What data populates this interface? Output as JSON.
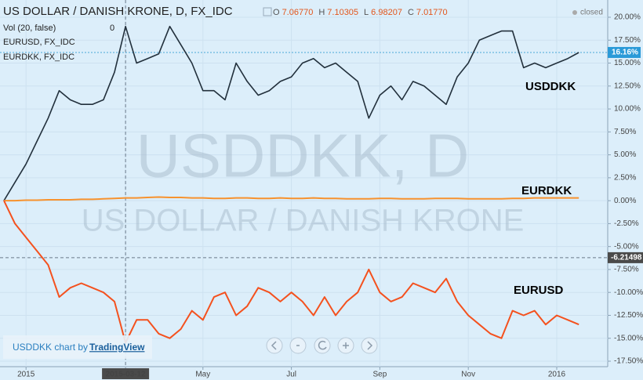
{
  "header": {
    "symbol": "US DOLLAR / DANISH KRONE, D, FX_IDC",
    "ohlc": [
      {
        "key": "O",
        "value": "7.06770"
      },
      {
        "key": "H",
        "value": "7.10305"
      },
      {
        "key": "L",
        "value": "6.98207"
      },
      {
        "key": "C",
        "value": "7.01770"
      }
    ],
    "status": "closed",
    "indicators": [
      {
        "name": "Vol (20, false)",
        "value": "0"
      },
      {
        "name": "EURUSD, FX_IDC"
      },
      {
        "name": "EURDKK, FX_IDC"
      }
    ]
  },
  "watermark": {
    "title": "USDDKK, D",
    "subtitle": "US DOLLAR / DANISH KRONE"
  },
  "credit": {
    "text": "USDDKK chart by",
    "link": "TradingView"
  },
  "chart_data": {
    "type": "line",
    "categories": [
      null,
      null,
      "2015",
      null,
      null,
      null,
      null,
      null,
      null,
      null,
      null,
      "2015-03-12",
      null,
      null,
      null,
      null,
      null,
      null,
      "May",
      null,
      null,
      null,
      null,
      null,
      null,
      null,
      "Jul",
      null,
      null,
      null,
      null,
      null,
      null,
      null,
      "Sep",
      null,
      null,
      null,
      null,
      null,
      null,
      null,
      "Nov",
      null,
      null,
      null,
      null,
      null,
      null,
      null,
      "2016",
      null,
      null
    ],
    "series": [
      {
        "name": "USDDKK",
        "color": "#22303c",
        "values": [
          0,
          2,
          4,
          6.5,
          9,
          12,
          11,
          10.5,
          10.5,
          11,
          14,
          19,
          15,
          15.5,
          16,
          19,
          17,
          15,
          12,
          12,
          11,
          15,
          13,
          11.5,
          12,
          13,
          13.5,
          15,
          15.5,
          14.5,
          15,
          14,
          13,
          9,
          11.5,
          12.5,
          11,
          13,
          12.5,
          11.5,
          10.5,
          13.5,
          15,
          17.5,
          18,
          18.5,
          18.5,
          14.5,
          15,
          14.5,
          15,
          15.5,
          16.16
        ]
      },
      {
        "name": "EURDKK",
        "color": "#f7922e",
        "values": [
          0,
          0,
          0.05,
          0.05,
          0.1,
          0.1,
          0.1,
          0.15,
          0.15,
          0.2,
          0.25,
          0.3,
          0.3,
          0.35,
          0.4,
          0.35,
          0.35,
          0.3,
          0.3,
          0.25,
          0.25,
          0.3,
          0.3,
          0.25,
          0.25,
          0.3,
          0.25,
          0.25,
          0.3,
          0.25,
          0.25,
          0.2,
          0.2,
          0.2,
          0.25,
          0.25,
          0.2,
          0.2,
          0.2,
          0.25,
          0.25,
          0.25,
          0.2,
          0.2,
          0.2,
          0.2,
          0.25,
          0.25,
          0.3,
          0.3,
          0.3,
          0.3,
          0.3
        ]
      },
      {
        "name": "EURUSD",
        "color": "#f4511e",
        "values": [
          0,
          -2.5,
          -4,
          -5.5,
          -7,
          -10.5,
          -9.5,
          -9,
          -9.5,
          -10,
          -11,
          -15.5,
          -13,
          -13,
          -14.5,
          -15,
          -14,
          -12,
          -13,
          -10.5,
          -10,
          -12.5,
          -11.5,
          -9.5,
          -10,
          -11,
          -10,
          -11,
          -12.5,
          -10.5,
          -12.5,
          -11,
          -10,
          -7.5,
          -10,
          -11,
          -10.5,
          -9,
          -9.5,
          -10,
          -8.5,
          -11,
          -12.5,
          -13.5,
          -14.5,
          -15,
          -12,
          -12.5,
          -12,
          -13.5,
          -12.5,
          -13,
          -13.5
        ]
      }
    ],
    "ylim": [
      -17.5,
      20
    ],
    "yticks": [
      {
        "value": 20,
        "label": "20.00%"
      },
      {
        "value": 17.5,
        "label": "17.50%"
      },
      {
        "value": 15,
        "label": "15.00%"
      },
      {
        "value": 12.5,
        "label": "12.50%"
      },
      {
        "value": 10,
        "label": "10.00%"
      },
      {
        "value": 7.5,
        "label": "7.50%"
      },
      {
        "value": 5,
        "label": "5.00%"
      },
      {
        "value": 2.5,
        "label": "2.50%"
      },
      {
        "value": 0,
        "label": "0.00%"
      },
      {
        "value": -2.5,
        "label": "-2.50%"
      },
      {
        "value": -5,
        "label": "-5.00%"
      },
      {
        "value": -7.5,
        "label": "-7.50%"
      },
      {
        "value": -10,
        "label": "-10.00%"
      },
      {
        "value": -12.5,
        "label": "-12.50%"
      },
      {
        "value": -15,
        "label": "-15.00%"
      },
      {
        "value": -17.5,
        "label": "-17.50%"
      }
    ],
    "last_price": {
      "value": 16.16,
      "label": "16.16%"
    },
    "crosshair": {
      "x": "2015-03-12",
      "y": -6.21498
    },
    "grid": true
  }
}
